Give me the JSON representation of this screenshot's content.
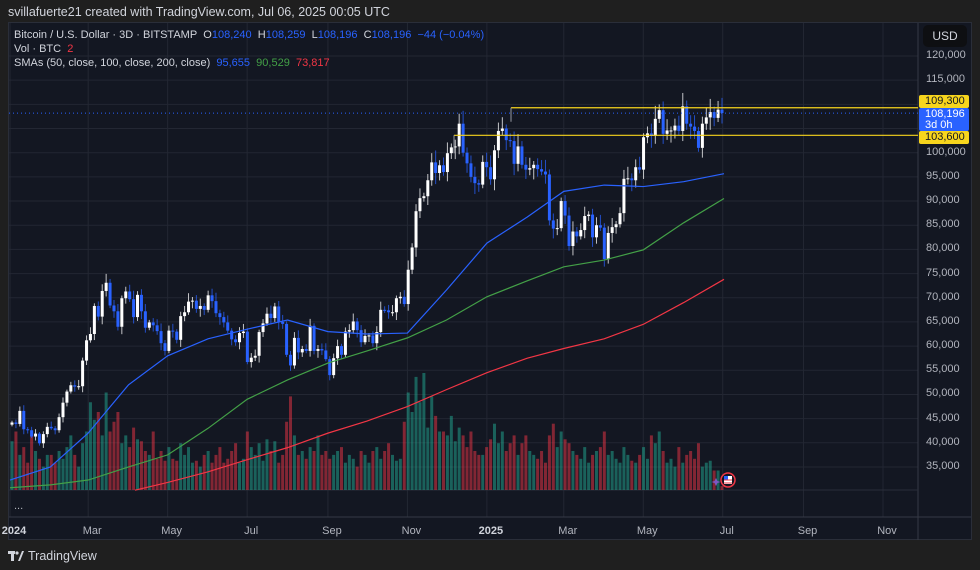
{
  "header": {
    "author_line": "svillafuerte21 created with TradingView.com, Jul 06, 2025 00:05 UTC"
  },
  "legend": {
    "symbol": "Bitcoin / U.S. Dollar · 3D · BITSTAMP",
    "o_label": "O",
    "o": "108,240",
    "h_label": "H",
    "h": "108,259",
    "l_label": "L",
    "l": "108,196",
    "c_label": "C",
    "c": "108,196",
    "change": "−44 (−0.04%)",
    "vol_label": "Vol · BTC",
    "vol_value": "2",
    "sma_label": "SMAs (50, close, 100, close, 200, close)",
    "sma50": "95,655",
    "sma100": "90,529",
    "sma200": "73,817"
  },
  "price_axis": {
    "currency_button": "USD",
    "ticks": [
      "120,000",
      "115,000",
      "100,000",
      "95,000",
      "90,000",
      "85,000",
      "80,000",
      "75,000",
      "70,000",
      "65,000",
      "60,000",
      "55,000",
      "50,000",
      "45,000",
      "40,000",
      "35,000"
    ],
    "level_high": "109,300",
    "level_low": "103,600",
    "last_price": "108,196",
    "countdown": "3d 0h"
  },
  "time_axis": {
    "ticks": [
      "2024",
      "Mar",
      "May",
      "Jul",
      "Sep",
      "Nov",
      "2025",
      "Mar",
      "May",
      "Jul",
      "Sep",
      "Nov"
    ]
  },
  "pane_more": "...",
  "footer": {
    "brand": "TradingView"
  },
  "colors": {
    "up_candle": "#ffffff",
    "down_candle": "#2962ff",
    "vol_up": "#22ab94",
    "vol_down": "#f23645",
    "sma50": "#2962ff",
    "sma100": "#43a047",
    "sma200": "#f23645",
    "level_line": "#f7d51d",
    "last_price": "#2962ff"
  },
  "chart_data": {
    "type": "candlestick",
    "interval": "3D",
    "x_range": [
      "2024-01",
      "2025-11"
    ],
    "ylim": [
      30000,
      125000
    ],
    "y_scale": "linear",
    "grid": true,
    "closes_thousands_usd": [
      44.2,
      43.9,
      46.6,
      42.8,
      42.6,
      41.3,
      41.9,
      39.9,
      41.8,
      43.3,
      43.0,
      42.6,
      45.3,
      48.3,
      50.6,
      51.9,
      51.6,
      51.7,
      57.0,
      61.2,
      62.5,
      68.3,
      66.1,
      71.4,
      73.1,
      68.4,
      67.2,
      64.0,
      69.9,
      71.3,
      69.7,
      66.0,
      70.6,
      67.2,
      63.8,
      64.9,
      64.3,
      63.1,
      60.6,
      59.0,
      63.2,
      63.0,
      61.3,
      66.2,
      67.0,
      69.2,
      69.4,
      67.7,
      68.3,
      67.5,
      70.5,
      69.3,
      66.8,
      66.0,
      64.9,
      63.2,
      61.4,
      60.8,
      62.7,
      63.0,
      56.7,
      57.6,
      58.0,
      62.9,
      64.7,
      66.7,
      65.8,
      68.2,
      65.0,
      64.6,
      58.2,
      56.0,
      61.7,
      58.7,
      59.4,
      59.0,
      64.2,
      59.0,
      59.4,
      59.1,
      57.3,
      54.0,
      57.5,
      60.0,
      58.2,
      63.0,
      63.3,
      65.1,
      63.3,
      60.8,
      62.1,
      62.2,
      60.6,
      62.9,
      67.5,
      67.4,
      67.0,
      67.0,
      69.9,
      70.2,
      68.7,
      75.8,
      80.4,
      87.9,
      90.6,
      91.0,
      94.3,
      98.0,
      95.8,
      97.4,
      96.0,
      99.9,
      101.1,
      101.3,
      106.0,
      100.0,
      97.8,
      95.0,
      93.7,
      93.4,
      98.1,
      97.0,
      94.5,
      100.5,
      104.5,
      105.0,
      102.6,
      102.4,
      97.7,
      101.3,
      97.5,
      96.5,
      96.8,
      97.5,
      96.6,
      96.1,
      95.5,
      86.0,
      84.3,
      84.4,
      90.0,
      87.0,
      80.7,
      83.7,
      82.7,
      84.0,
      86.9,
      87.2,
      82.5,
      85.0,
      84.5,
      78.0,
      83.4,
      84.6,
      85.2,
      87.5,
      94.6,
      94.7,
      94.3,
      97.0,
      96.5,
      103.2,
      104.0,
      103.5,
      107.0,
      108.8,
      103.9,
      104.6,
      104.6,
      105.6,
      104.5,
      109.6,
      106.0,
      105.4,
      104.5,
      101.0,
      106.0,
      107.3,
      108.4,
      107.2,
      108.9,
      108.196
    ],
    "volume_relative": [
      25,
      30,
      18,
      22,
      14,
      28,
      20,
      16,
      12,
      18,
      18,
      14,
      20,
      16,
      22,
      28,
      18,
      12,
      24,
      30,
      45,
      36,
      40,
      28,
      50,
      30,
      35,
      40,
      24,
      28,
      22,
      32,
      26,
      25,
      20,
      18,
      30,
      16,
      20,
      15,
      22,
      16,
      15,
      24,
      18,
      22,
      14,
      15,
      12,
      18,
      20,
      14,
      18,
      22,
      14,
      16,
      20,
      24,
      14,
      16,
      30,
      22,
      18,
      24,
      15,
      26,
      20,
      25,
      14,
      18,
      35,
      48,
      28,
      18,
      20,
      16,
      22,
      20,
      28,
      18,
      20,
      16,
      18,
      20,
      22,
      14,
      18,
      16,
      12,
      20,
      18,
      14,
      20,
      22,
      16,
      20,
      24,
      18,
      15,
      16,
      35,
      50,
      40,
      58,
      45,
      60,
      32,
      48,
      38,
      30,
      30,
      28,
      38,
      25,
      32,
      28,
      22,
      30,
      20,
      18,
      18,
      22,
      26,
      34,
      24,
      30,
      20,
      24,
      28,
      18,
      24,
      28,
      20,
      18,
      16,
      20,
      14,
      28,
      34,
      22,
      30,
      26,
      24,
      20,
      18,
      16,
      22,
      14,
      18,
      20,
      22,
      30,
      18,
      20,
      16,
      14,
      22,
      18,
      15,
      14,
      18,
      22,
      16,
      28,
      24,
      30,
      20,
      14,
      16,
      12,
      22,
      14,
      18,
      20,
      16,
      24,
      12,
      14,
      15,
      10,
      10,
      2
    ],
    "sma_series": [
      {
        "name": "SMA 50",
        "months": [
          "2024-01",
          "2024-02",
          "2024-03",
          "2024-04",
          "2024-05",
          "2024-06",
          "2024-07",
          "2024-08",
          "2024-09",
          "2024-10",
          "2024-11",
          "2024-12",
          "2025-01",
          "2025-02",
          "2025-03",
          "2025-04",
          "2025-05",
          "2025-06",
          "2025-07"
        ],
        "values_thousands": [
          32.3,
          35,
          42,
          52,
          58,
          61.5,
          63.5,
          65.4,
          63,
          62.5,
          62.7,
          71.6,
          81.3,
          86.7,
          92,
          93.3,
          93,
          94,
          95.655
        ]
      },
      {
        "name": "SMA 100",
        "months": [
          "2024-01",
          "2024-02",
          "2024-03",
          "2024-04",
          "2024-05",
          "2024-06",
          "2024-07",
          "2024-08",
          "2024-09",
          "2024-10",
          "2024-11",
          "2024-12",
          "2025-01",
          "2025-02",
          "2025-03",
          "2025-04",
          "2025-05",
          "2025-06",
          "2025-07"
        ],
        "values_thousands": [
          30.7,
          31.3,
          32.3,
          35,
          37.5,
          43,
          49,
          53,
          56.5,
          59,
          61.7,
          65.4,
          70.2,
          73.5,
          76.4,
          77.8,
          79.9,
          85.5,
          90.529
        ]
      },
      {
        "name": "SMA 200",
        "months": [
          "2024-04",
          "2024-05",
          "2024-06",
          "2024-07",
          "2024-08",
          "2024-09",
          "2024-10",
          "2024-11",
          "2024-12",
          "2025-01",
          "2025-02",
          "2025-03",
          "2025-04",
          "2025-05",
          "2025-06",
          "2025-07"
        ],
        "values_thousands": [
          30.2,
          31.8,
          34,
          36.5,
          39,
          42,
          44.5,
          47.5,
          51,
          54.5,
          57.5,
          59.5,
          61.5,
          64.5,
          69,
          73.817
        ]
      }
    ],
    "horizontal_levels": [
      109300,
      103600
    ],
    "last_price": 108196
  }
}
